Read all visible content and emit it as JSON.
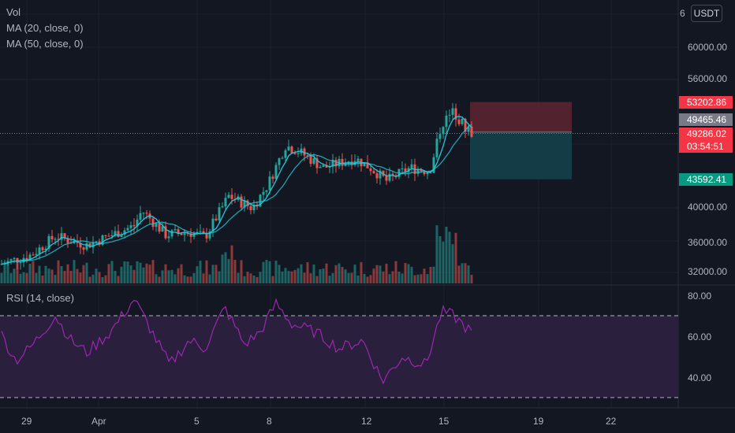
{
  "legend": {
    "vol": "Vol",
    "ma20": "MA (20, close, 0)",
    "ma50": "MA (50, close, 0)"
  },
  "currency_button": "USDT",
  "price_axis": {
    "top_partial": "6",
    "ticks": [
      "60000.00",
      "56000.00",
      "40000.00",
      "36000.00",
      "32000.00"
    ]
  },
  "price_tags": {
    "stop": "53202.86",
    "entry": "49465.46",
    "last": "49286.02",
    "countdown": "03:54:51",
    "target": "43592.41"
  },
  "rsi": {
    "label": "RSI (14, close)",
    "ticks": [
      "80.00",
      "60.00",
      "40.00"
    ],
    "upper": 70,
    "lower": 30
  },
  "time_axis": [
    "29",
    "Apr",
    "5",
    "8",
    "12",
    "15",
    "19",
    "22"
  ],
  "colors": {
    "background": "#131722",
    "bull": "#26a69a",
    "bear": "#ef5350",
    "ma20": "#2962ff",
    "ma50": "#26c6da",
    "rsi_line": "#9c27b0",
    "rsi_band": "#2a1f3d",
    "stop_zone": "#5a2530",
    "target_zone": "#14404a",
    "stop_tag": "#f23645",
    "entry_tag": "#787b86",
    "last_tag": "#f23645",
    "target_tag": "#089981"
  }
}
